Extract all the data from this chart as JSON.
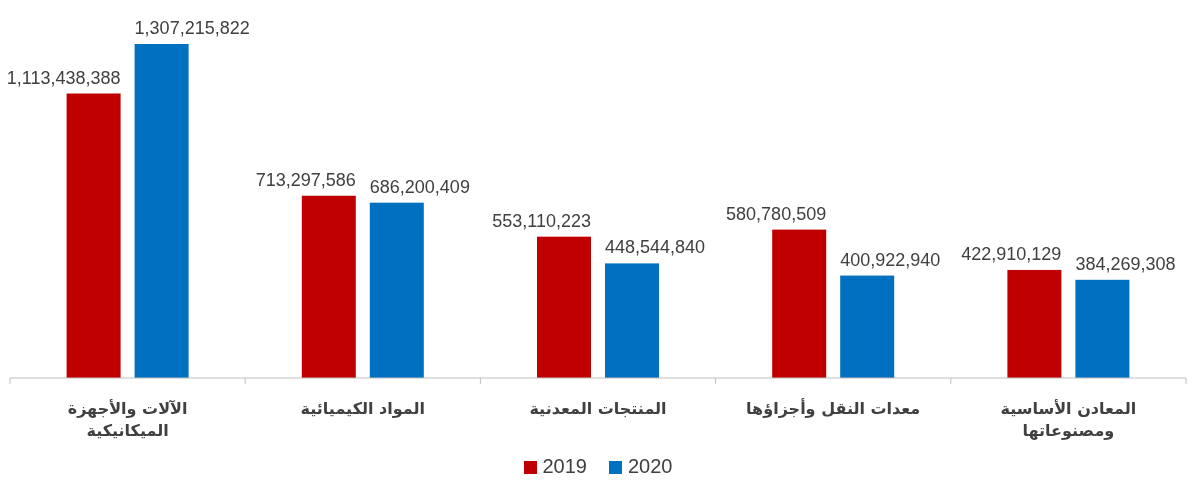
{
  "chart_data": {
    "type": "bar",
    "categories": [
      "الآلات والأجهزة الميكانيكية",
      "المواد الكيميائية",
      "المنتجات المعدنية",
      "معدات النقل وأجزاؤها",
      "المعادن الأساسية ومصنوعاتها"
    ],
    "series": [
      {
        "name": "2019",
        "color": "#c00000",
        "values": [
          1113438388,
          713297586,
          553110223,
          580780509,
          422910129
        ],
        "value_labels": [
          "1,113,438,388",
          "713,297,586",
          "553,110,223",
          "580,780,509",
          "422,910,129"
        ]
      },
      {
        "name": "2020",
        "color": "#0070c0",
        "values": [
          1307215822,
          686200409,
          448544840,
          400922940,
          384269308
        ],
        "value_labels": [
          "1,307,215,822",
          "686,200,409",
          "448,544,840",
          "400,922,940",
          "384,269,308"
        ]
      }
    ],
    "legend": "bottom"
  }
}
